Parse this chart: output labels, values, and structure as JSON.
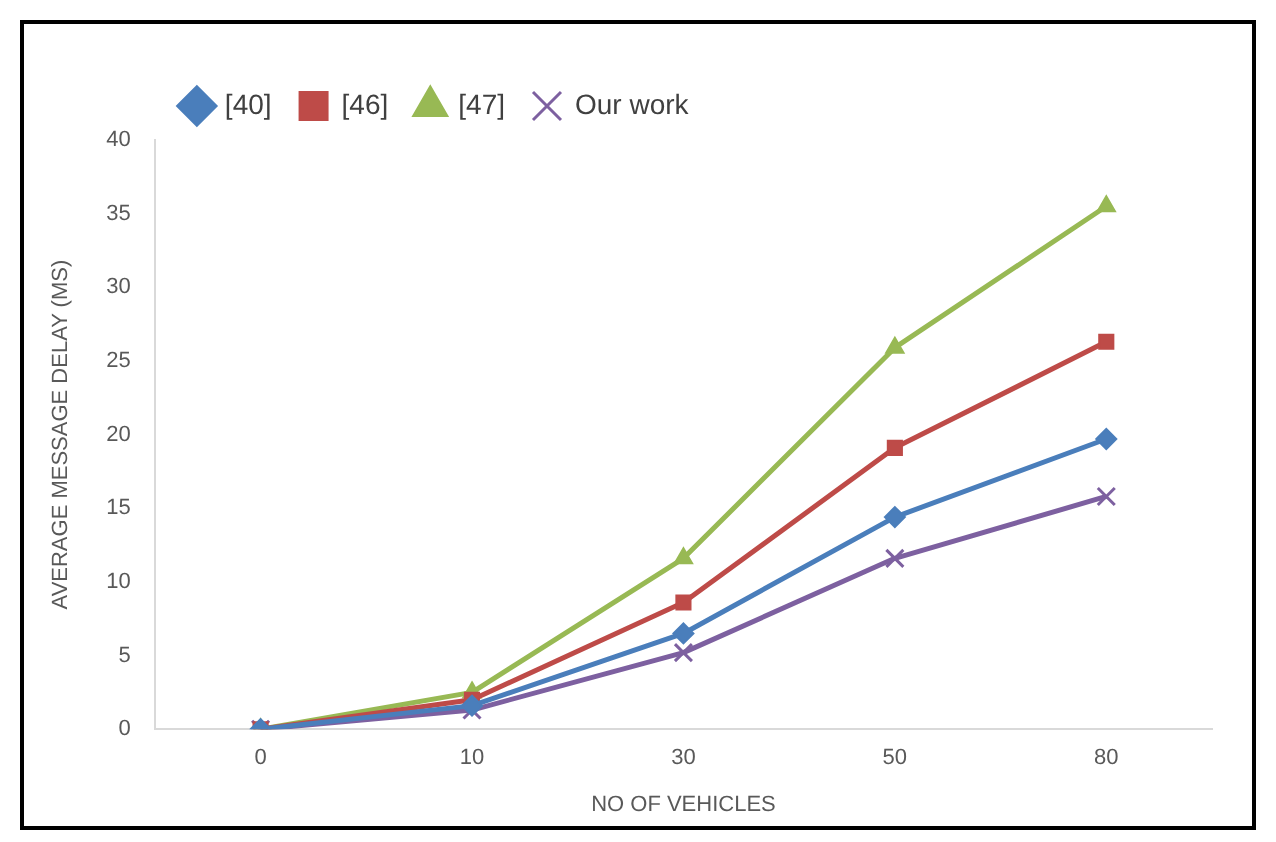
{
  "chart_data": {
    "type": "line",
    "xlabel": "NO OF VEHICLES",
    "ylabel": "AVERAGE MESSAGE DELAY (MS)",
    "categories": [
      "0",
      "10",
      "30",
      "50",
      "80"
    ],
    "ylim": [
      0,
      40
    ],
    "yticks": [
      0,
      5,
      10,
      15,
      20,
      25,
      30,
      35,
      40
    ],
    "grid": false,
    "legend": "top left",
    "series": [
      {
        "name": "[40]",
        "color": "#4a7ebb",
        "marker": "diamond",
        "values": [
          0,
          1.6,
          6.5,
          14.4,
          19.7
        ]
      },
      {
        "name": "[46]",
        "color": "#be4b48",
        "marker": "square",
        "values": [
          0,
          2.0,
          8.6,
          19.1,
          26.3
        ]
      },
      {
        "name": "[47]",
        "color": "#98b954",
        "marker": "triangle",
        "values": [
          0,
          2.5,
          11.6,
          25.9,
          35.5
        ]
      },
      {
        "name": "Our work",
        "color": "#7d60a0",
        "marker": "cross",
        "values": [
          0,
          1.3,
          5.2,
          11.6,
          15.8
        ]
      }
    ]
  }
}
